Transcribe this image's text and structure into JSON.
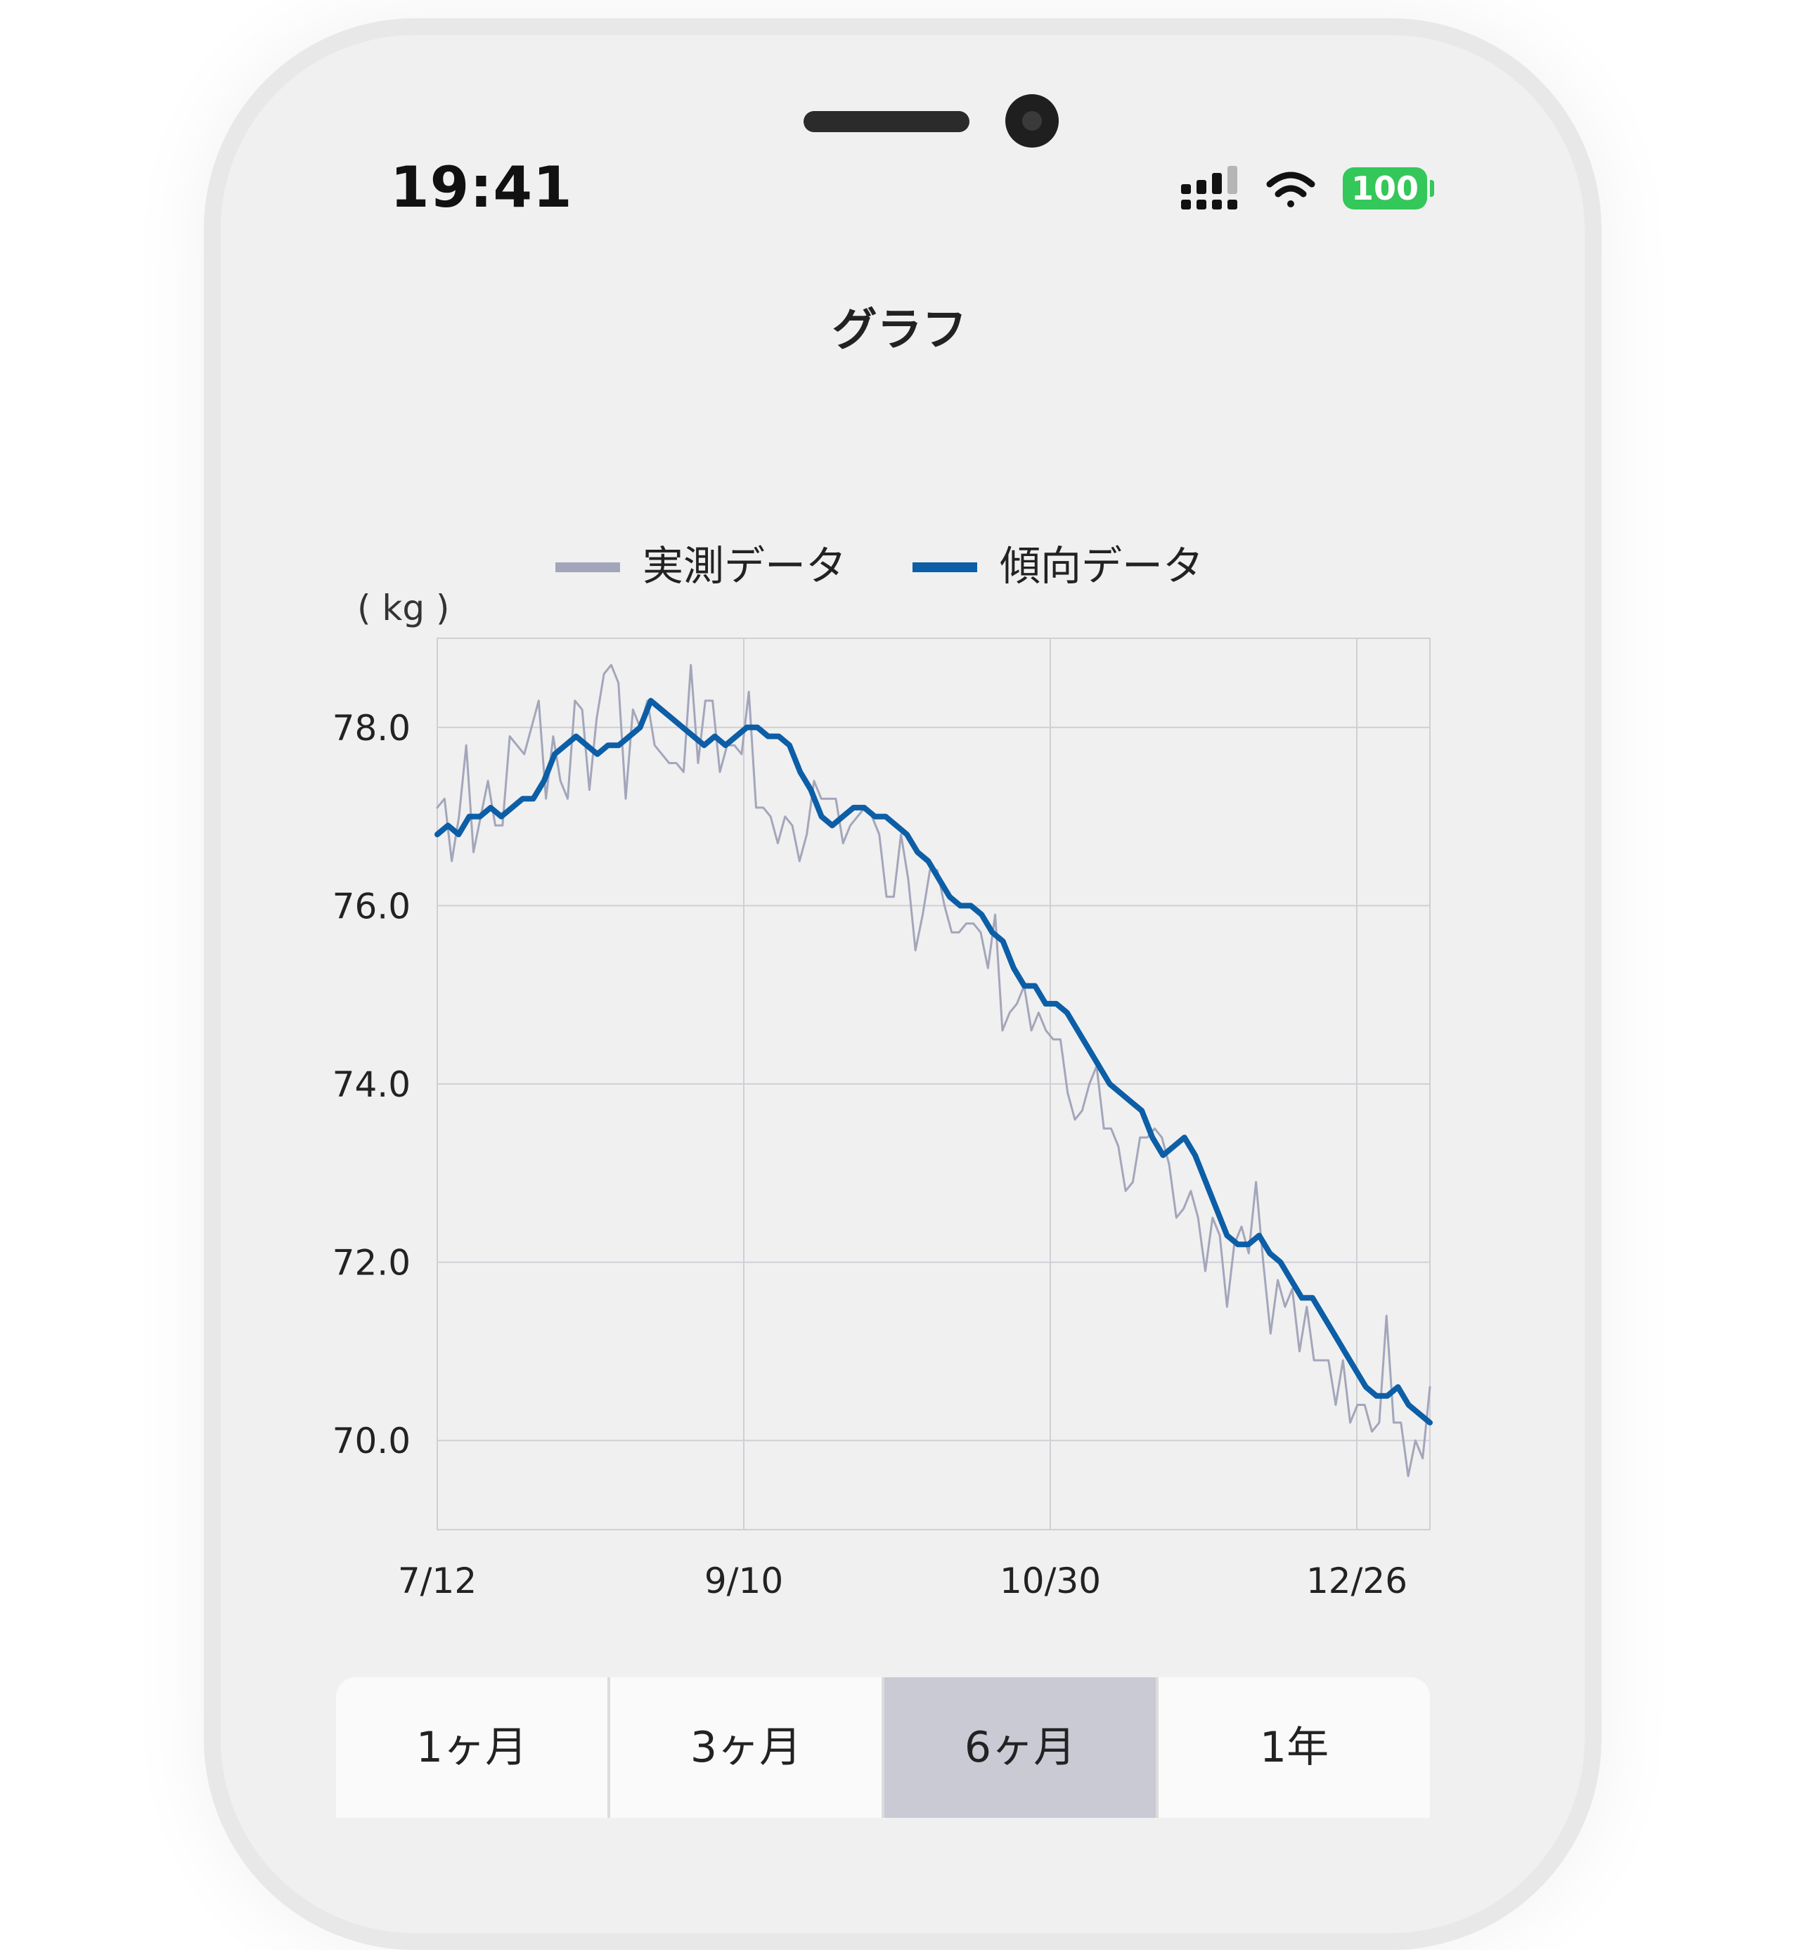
{
  "status_bar": {
    "time": "19:41",
    "battery": "100"
  },
  "header": {
    "title": "グラフ"
  },
  "legend": [
    {
      "label": "実測データ",
      "color": "#a3a6bb"
    },
    {
      "label": "傾向データ",
      "color": "#0c5ea6"
    }
  ],
  "tabs": [
    {
      "label": "1ヶ月",
      "active": false
    },
    {
      "label": "3ヶ月",
      "active": false
    },
    {
      "label": "6ヶ月",
      "active": true
    },
    {
      "label": "1年",
      "active": false
    }
  ],
  "chart_data": {
    "type": "line",
    "ylabel": "( kg )",
    "ylim": [
      69.0,
      79.0
    ],
    "yticks": [
      70.0,
      72.0,
      74.0,
      76.0,
      78.0
    ],
    "xticks": [
      "7/12",
      "9/10",
      "10/30",
      "12/26"
    ],
    "grid": true,
    "legend_position": "top",
    "series": [
      {
        "name": "実測データ",
        "color": "#a3a6bb",
        "values": [
          77.1,
          77.2,
          76.5,
          77.0,
          77.8,
          76.6,
          77.0,
          77.4,
          76.9,
          76.9,
          77.9,
          77.8,
          77.7,
          78.0,
          78.3,
          77.2,
          77.9,
          77.4,
          77.2,
          78.3,
          78.2,
          77.3,
          78.1,
          78.6,
          78.7,
          78.5,
          77.2,
          78.2,
          78.0,
          78.3,
          77.8,
          77.7,
          77.6,
          77.6,
          77.5,
          78.7,
          77.6,
          78.3,
          78.3,
          77.5,
          77.8,
          77.8,
          77.7,
          78.4,
          77.1,
          77.1,
          77.0,
          76.7,
          77.0,
          76.9,
          76.5,
          76.8,
          77.4,
          77.2,
          77.2,
          77.2,
          76.7,
          76.9,
          77.0,
          77.1,
          77.0,
          76.8,
          76.1,
          76.1,
          76.8,
          76.3,
          75.5,
          75.9,
          76.4,
          76.4,
          76.0,
          75.7,
          75.7,
          75.8,
          75.8,
          75.7,
          75.3,
          75.9,
          74.6,
          74.8,
          74.9,
          75.1,
          74.6,
          74.8,
          74.6,
          74.5,
          74.5,
          73.9,
          73.6,
          73.7,
          74.0,
          74.2,
          73.5,
          73.5,
          73.3,
          72.8,
          72.9,
          73.4,
          73.4,
          73.5,
          73.4,
          73.1,
          72.5,
          72.6,
          72.8,
          72.5,
          71.9,
          72.5,
          72.3,
          71.5,
          72.2,
          72.4,
          72.1,
          72.9,
          72.0,
          71.2,
          71.8,
          71.5,
          71.7,
          71.0,
          71.5,
          70.9,
          70.9,
          70.9,
          70.4,
          70.9,
          70.2,
          70.4,
          70.4,
          70.1,
          70.2,
          71.4,
          70.2,
          70.2,
          69.6,
          70.0,
          69.8,
          70.6
        ]
      },
      {
        "name": "傾向データ",
        "color": "#0c5ea6",
        "values": [
          76.8,
          76.9,
          76.8,
          77.0,
          77.0,
          77.1,
          77.0,
          77.1,
          77.2,
          77.2,
          77.4,
          77.7,
          77.8,
          77.9,
          77.8,
          77.7,
          77.8,
          77.8,
          77.9,
          78.0,
          78.3,
          78.2,
          78.1,
          78.0,
          77.9,
          77.8,
          77.9,
          77.8,
          77.9,
          78.0,
          78.0,
          77.9,
          77.9,
          77.8,
          77.5,
          77.3,
          77.0,
          76.9,
          77.0,
          77.1,
          77.1,
          77.0,
          77.0,
          76.9,
          76.8,
          76.6,
          76.5,
          76.3,
          76.1,
          76.0,
          76.0,
          75.9,
          75.7,
          75.6,
          75.3,
          75.1,
          75.1,
          74.9,
          74.9,
          74.8,
          74.6,
          74.4,
          74.2,
          74.0,
          73.9,
          73.8,
          73.7,
          73.4,
          73.2,
          73.3,
          73.4,
          73.2,
          72.9,
          72.6,
          72.3,
          72.2,
          72.2,
          72.3,
          72.1,
          72.0,
          71.8,
          71.6,
          71.6,
          71.4,
          71.2,
          71.0,
          70.8,
          70.6,
          70.5,
          70.5,
          70.6,
          70.4,
          70.3,
          70.2
        ]
      }
    ]
  }
}
